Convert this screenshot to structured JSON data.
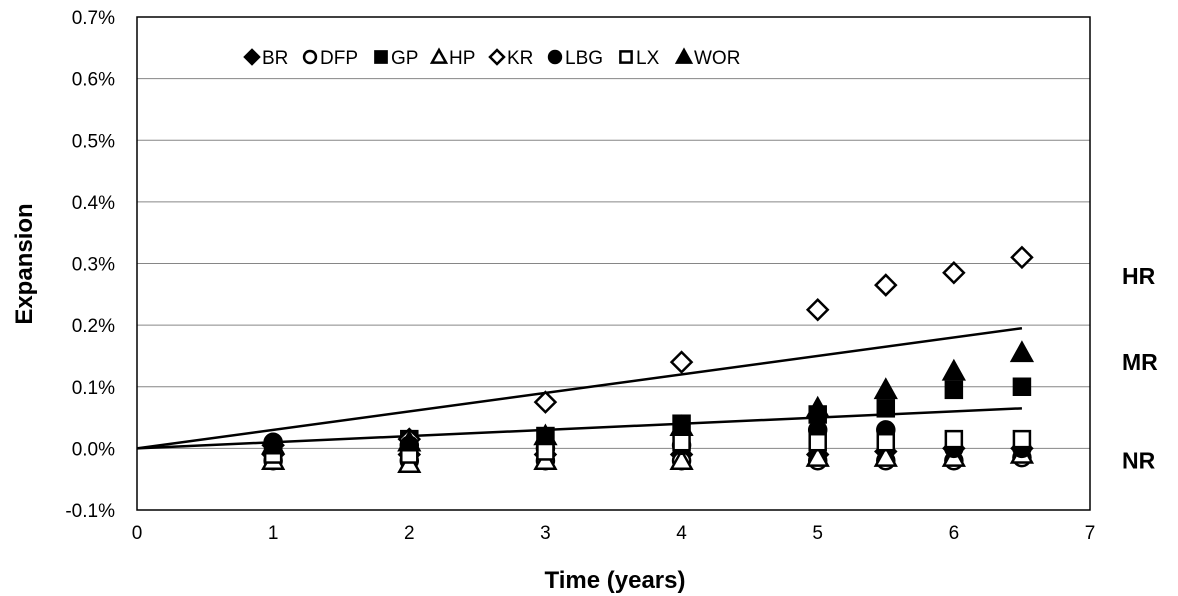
{
  "chart_data": {
    "type": "scatter",
    "title": "",
    "xlabel": "Time (years)",
    "ylabel": "Expansion",
    "xlim": [
      0,
      7
    ],
    "ylim": [
      -0.1,
      0.7
    ],
    "x_ticks": [
      "0",
      "1",
      "2",
      "3",
      "4",
      "5",
      "6",
      "7"
    ],
    "y_ticks": [
      "-0.1%",
      "0.0%",
      "0.1%",
      "0.2%",
      "0.3%",
      "0.4%",
      "0.5%",
      "0.6%",
      "0.7%"
    ],
    "y_unit": "%",
    "grid": "horizontal",
    "legend_position": "top-left inside",
    "series": [
      {
        "name": "BR",
        "marker": "diamond-filled",
        "x": [
          1,
          2,
          3,
          4,
          5,
          5.5,
          6,
          6.5
        ],
        "y": [
          -0.01,
          -0.01,
          -0.01,
          -0.01,
          -0.01,
          -0.005,
          0.0,
          0.0
        ]
      },
      {
        "name": "DFP",
        "marker": "circle-open",
        "x": [
          1,
          2,
          3,
          4,
          5,
          5.5,
          6,
          6.5
        ],
        "y": [
          -0.02,
          -0.02,
          -0.02,
          -0.02,
          -0.02,
          -0.02,
          -0.02,
          -0.015
        ]
      },
      {
        "name": "GP",
        "marker": "square-filled",
        "x": [
          1,
          2,
          3,
          4,
          5,
          5.5,
          6,
          6.5
        ],
        "y": [
          0.0,
          0.015,
          0.02,
          0.04,
          0.055,
          0.065,
          0.095,
          0.1
        ]
      },
      {
        "name": "HP",
        "marker": "triangle-open",
        "x": [
          1,
          2,
          3,
          4,
          5,
          5.5,
          6,
          6.5
        ],
        "y": [
          -0.02,
          -0.025,
          -0.02,
          -0.02,
          -0.015,
          -0.015,
          -0.015,
          -0.01
        ]
      },
      {
        "name": "KR",
        "marker": "diamond-open",
        "x": [
          1,
          2,
          3,
          4,
          5,
          5.5,
          6,
          6.5
        ],
        "y": [
          0.005,
          0.015,
          0.075,
          0.14,
          0.225,
          0.265,
          0.285,
          0.31
        ]
      },
      {
        "name": "LBG",
        "marker": "circle-filled",
        "x": [
          1,
          2,
          3,
          4,
          5,
          5.5,
          6,
          6.5
        ],
        "y": [
          0.01,
          0.005,
          0.0,
          0.005,
          0.03,
          0.03,
          0.0,
          0.0
        ]
      },
      {
        "name": "LX",
        "marker": "square-open",
        "x": [
          1,
          2,
          3,
          4,
          5,
          5.5,
          6,
          6.5
        ],
        "y": [
          -0.01,
          -0.01,
          -0.005,
          0.01,
          0.01,
          0.01,
          0.015,
          0.015
        ]
      },
      {
        "name": "WOR",
        "marker": "triangle-filled",
        "x": [
          1,
          2,
          3,
          4,
          5,
          5.5,
          6,
          6.5
        ],
        "y": [
          0.005,
          0.01,
          0.02,
          0.035,
          0.065,
          0.095,
          0.125,
          0.155
        ]
      }
    ],
    "reference_lines": [
      {
        "x": [
          0,
          6.5
        ],
        "y": [
          0.0,
          0.195
        ]
      },
      {
        "x": [
          0,
          6.5
        ],
        "y": [
          0.0,
          0.065
        ]
      }
    ],
    "zone_labels": [
      {
        "text": "HR",
        "y": 0.28
      },
      {
        "text": "MR",
        "y": 0.14
      },
      {
        "text": "NR",
        "y": -0.02
      }
    ]
  }
}
